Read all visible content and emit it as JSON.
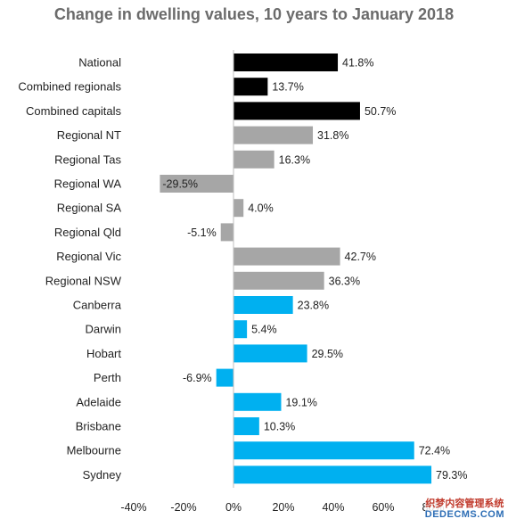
{
  "chart_data": {
    "type": "bar",
    "orientation": "horizontal",
    "title": "Change in dwelling values, 10 years to January 2018",
    "categories": [
      "National",
      "Combined regionals",
      "Combined capitals",
      "Regional NT",
      "Regional Tas",
      "Regional WA",
      "Regional SA",
      "Regional Qld",
      "Regional Vic",
      "Regional NSW",
      "Canberra",
      "Darwin",
      "Hobart",
      "Perth",
      "Adelaide",
      "Brisbane",
      "Melbourne",
      "Sydney"
    ],
    "values": [
      41.8,
      13.7,
      50.7,
      31.8,
      16.3,
      -29.5,
      4.0,
      -5.1,
      42.7,
      36.3,
      23.8,
      5.4,
      29.5,
      -6.9,
      19.1,
      10.3,
      72.4,
      79.3
    ],
    "value_labels": [
      "41.8%",
      "13.7%",
      "50.7%",
      "31.8%",
      "16.3%",
      "-29.5%",
      "4.0%",
      "-5.1%",
      "42.7%",
      "36.3%",
      "23.8%",
      "5.4%",
      "29.5%",
      "-6.9%",
      "19.1%",
      "10.3%",
      "72.4%",
      "79.3%"
    ],
    "groups": [
      "aggregate",
      "aggregate",
      "aggregate",
      "regional",
      "regional",
      "regional",
      "regional",
      "regional",
      "regional",
      "regional",
      "capital",
      "capital",
      "capital",
      "capital",
      "capital",
      "capital",
      "capital",
      "capital"
    ],
    "colors": {
      "aggregate": "#000000",
      "regional": "#a6a6a6",
      "capital": "#00b0f0"
    },
    "xlim": [
      -40,
      80
    ],
    "x_ticks": [
      "-40%",
      "-20%",
      "0%",
      "20%",
      "40%",
      "60%",
      "80%"
    ],
    "grid": false
  },
  "watermark": {
    "line1": "织梦内容管理系统",
    "line2": "DEDECMS.COM"
  }
}
